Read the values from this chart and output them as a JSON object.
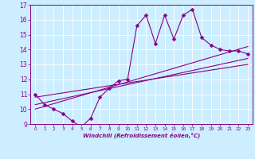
{
  "title": "",
  "xlabel": "Windchill (Refroidissement éolien,°C)",
  "bg_color": "#cceeff",
  "line_color": "#880088",
  "xlim": [
    -0.5,
    23.5
  ],
  "ylim": [
    9,
    17
  ],
  "xticks": [
    0,
    1,
    2,
    3,
    4,
    5,
    6,
    7,
    8,
    9,
    10,
    11,
    12,
    13,
    14,
    15,
    16,
    17,
    18,
    19,
    20,
    21,
    22,
    23
  ],
  "yticks": [
    9,
    10,
    11,
    12,
    13,
    14,
    15,
    16,
    17
  ],
  "main_x": [
    0,
    1,
    2,
    3,
    4,
    5,
    6,
    7,
    8,
    9,
    10,
    11,
    12,
    13,
    14,
    15,
    16,
    17,
    18,
    19,
    20,
    21,
    22,
    23
  ],
  "main_y": [
    11.0,
    10.3,
    10.0,
    9.7,
    9.2,
    8.8,
    9.4,
    10.8,
    11.4,
    11.9,
    12.0,
    15.6,
    16.3,
    14.4,
    16.3,
    14.7,
    16.3,
    16.7,
    14.8,
    14.3,
    14.0,
    13.9,
    13.9,
    13.7
  ],
  "line1_x": [
    0,
    23
  ],
  "line1_y": [
    10.0,
    14.2
  ],
  "line2_x": [
    0,
    23
  ],
  "line2_y": [
    10.3,
    13.4
  ],
  "line3_x": [
    0,
    23
  ],
  "line3_y": [
    10.8,
    13.0
  ]
}
